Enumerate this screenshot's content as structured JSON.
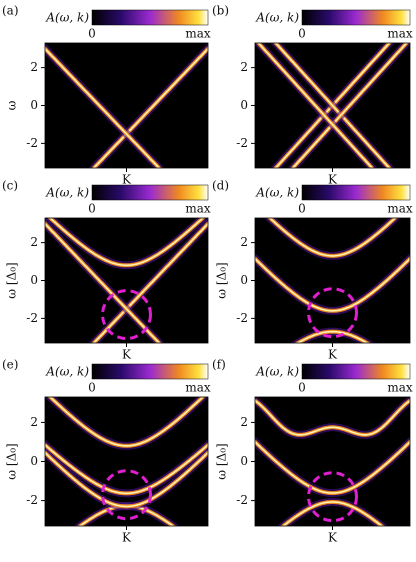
{
  "panels": [
    {
      "label": "(a)",
      "colorbar": {
        "label": "A(ω, k)",
        "min": "0",
        "max": "max"
      },
      "xlabel": "K",
      "ylabel": "ω",
      "yticks": [
        2,
        0,
        -2
      ]
    },
    {
      "label": "(b)",
      "colorbar": {
        "label": "A(ω, k)",
        "min": "0",
        "max": "max"
      },
      "xlabel": "K",
      "yticks": [
        2,
        0,
        -2
      ]
    },
    {
      "label": "(c)",
      "colorbar": {
        "label": "A(ω, k)",
        "min": "0",
        "max": "max"
      },
      "xlabel": "K",
      "ylabel": "ω [Δ₀]",
      "yticks": [
        2,
        0,
        -2
      ]
    },
    {
      "label": "(d)",
      "colorbar": {
        "label": "A(ω, k)",
        "min": "0",
        "max": "max"
      },
      "xlabel": "K",
      "ylabel": "ω [Δ₀]",
      "yticks": [
        2,
        0,
        -2
      ]
    },
    {
      "label": "(e)",
      "colorbar": {
        "label": "A(ω, k)",
        "min": "0",
        "max": "max"
      },
      "xlabel": "K",
      "ylabel": "ω [Δ₀]",
      "yticks": [
        2,
        0,
        -2
      ]
    },
    {
      "label": "(f)",
      "colorbar": {
        "label": "A(ω, k)",
        "min": "0",
        "max": "max"
      },
      "xlabel": "K",
      "ylabel": "ω [Δ₀]",
      "yticks": [
        2,
        0,
        -2
      ]
    }
  ]
}
